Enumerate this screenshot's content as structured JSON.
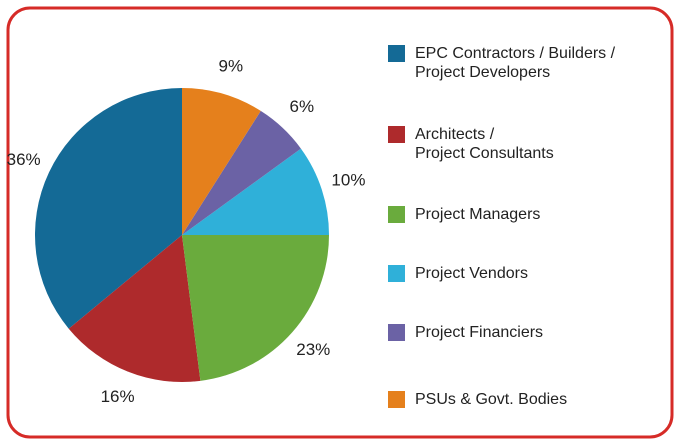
{
  "chart_data": {
    "type": "pie",
    "categories": [
      "EPC Contractors / Builders /\nProject Developers",
      "Architects /\nProject Consultants",
      "Project Managers",
      "Project Vendors",
      "Project Financiers",
      "PSUs & Govt. Bodies"
    ],
    "values": [
      36,
      16,
      23,
      10,
      6,
      9
    ],
    "value_labels": [
      "36%",
      "16%",
      "23%",
      "10%",
      "6%",
      "9%"
    ],
    "colors": [
      "#146a96",
      "#ae2a2c",
      "#6aab3d",
      "#2fb0d9",
      "#6b62a5",
      "#e5801c"
    ],
    "legend": "right"
  }
}
